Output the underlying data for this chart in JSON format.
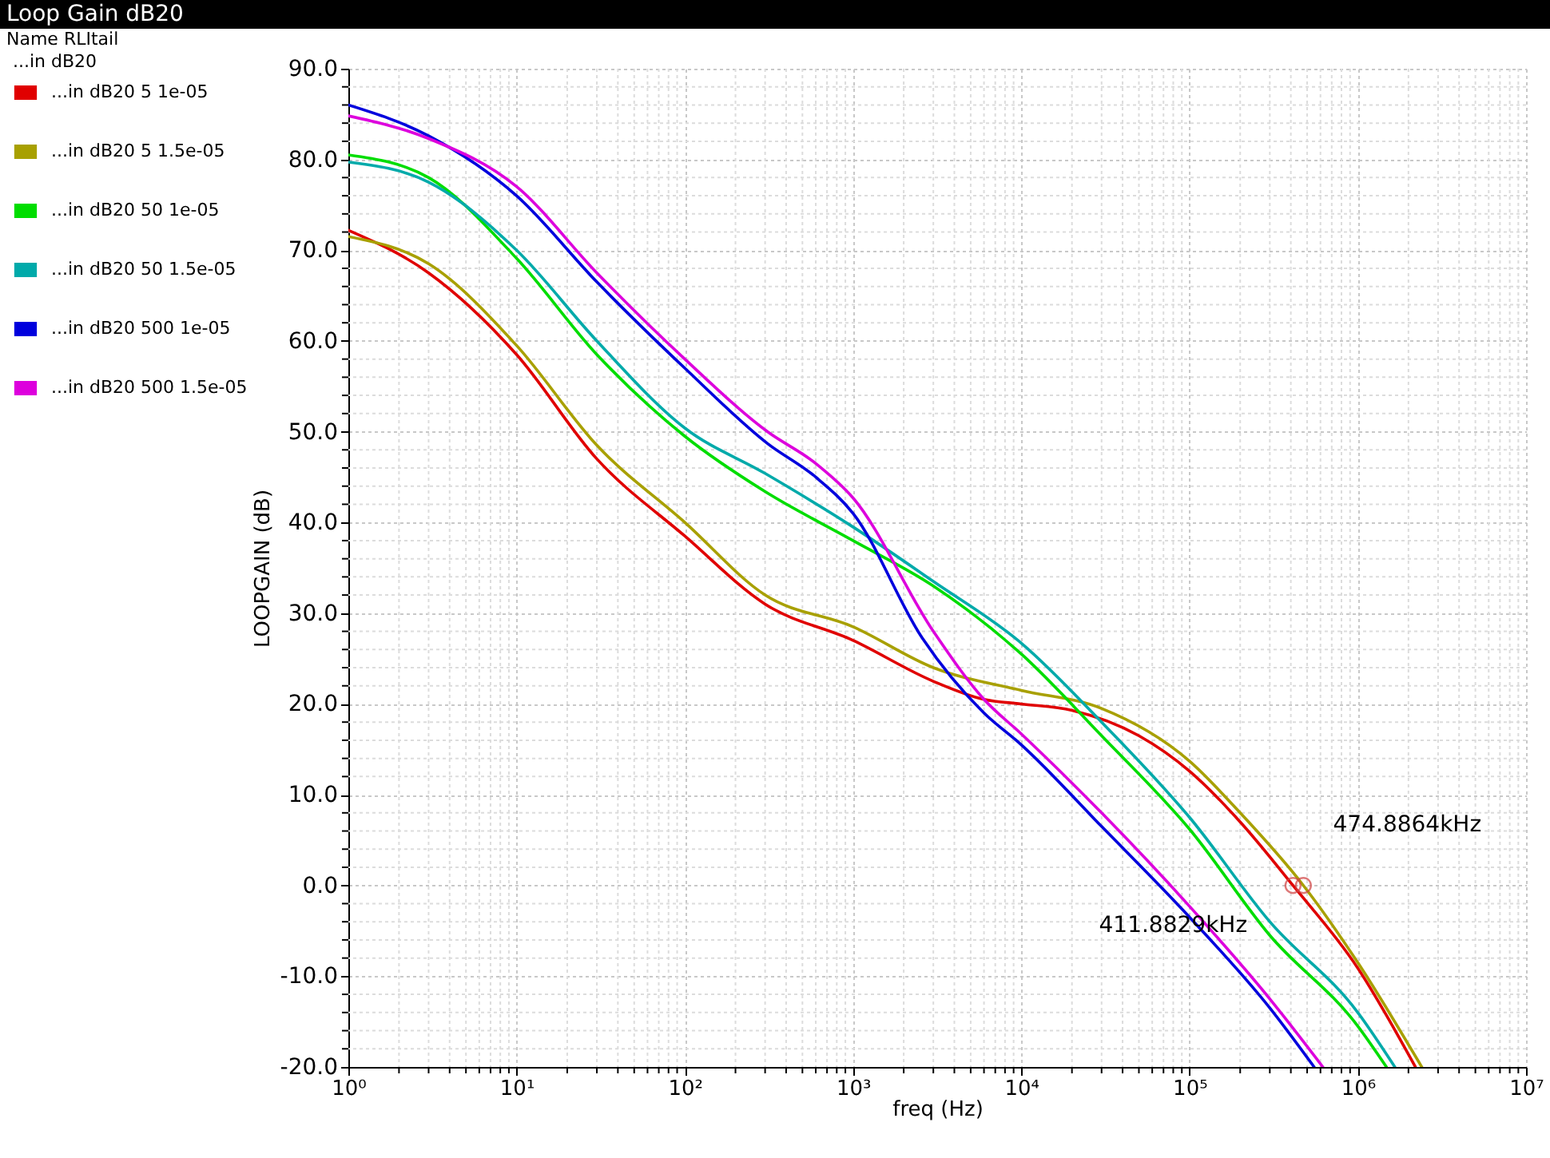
{
  "chart_data": {
    "type": "line",
    "title": "Loop Gain dB20",
    "xlabel": "freq (Hz)",
    "ylabel": "LOOPGAIN (dB)",
    "legend_title": "Name RLItail",
    "legend": "top left",
    "grid": true,
    "log": "x",
    "line_style": "solid",
    "xlim": [
      1,
      10000000
    ],
    "ylim": [
      -20,
      90
    ],
    "xticks": [
      {
        "value": 1,
        "label": "10⁰"
      },
      {
        "value": 10,
        "label": "10¹"
      },
      {
        "value": 100,
        "label": "10²"
      },
      {
        "value": 1000,
        "label": "10³"
      },
      {
        "value": 10000,
        "label": "10⁴"
      },
      {
        "value": 100000,
        "label": "10⁵"
      },
      {
        "value": 1000000,
        "label": "10⁶"
      },
      {
        "value": 10000000,
        "label": "10⁷"
      },
      {
        "value": 2,
        "label": null
      },
      {
        "value": 3,
        "label": null
      },
      {
        "value": 4,
        "label": null
      },
      {
        "value": 5,
        "label": null
      },
      {
        "value": 6,
        "label": null
      },
      {
        "value": 7,
        "label": null
      },
      {
        "value": 8,
        "label": null
      },
      {
        "value": 9,
        "label": null
      },
      {
        "value": 20,
        "label": null
      },
      {
        "value": 30,
        "label": null
      },
      {
        "value": 40,
        "label": null
      },
      {
        "value": 50,
        "label": null
      },
      {
        "value": 60,
        "label": null
      },
      {
        "value": 70,
        "label": null
      },
      {
        "value": 80,
        "label": null
      },
      {
        "value": 90,
        "label": null
      },
      {
        "value": 200,
        "label": null
      },
      {
        "value": 300,
        "label": null
      },
      {
        "value": 400,
        "label": null
      },
      {
        "value": 500,
        "label": null
      },
      {
        "value": 600,
        "label": null
      },
      {
        "value": 700,
        "label": null
      },
      {
        "value": 800,
        "label": null
      },
      {
        "value": 900,
        "label": null
      },
      {
        "value": 2000,
        "label": null
      },
      {
        "value": 3000,
        "label": null
      },
      {
        "value": 4000,
        "label": null
      },
      {
        "value": 5000,
        "label": null
      },
      {
        "value": 6000,
        "label": null
      },
      {
        "value": 7000,
        "label": null
      },
      {
        "value": 8000,
        "label": null
      },
      {
        "value": 9000,
        "label": null
      },
      {
        "value": 20000,
        "label": null
      },
      {
        "value": 30000,
        "label": null
      },
      {
        "value": 40000,
        "label": null
      },
      {
        "value": 50000,
        "label": null
      },
      {
        "value": 60000,
        "label": null
      },
      {
        "value": 70000,
        "label": null
      },
      {
        "value": 80000,
        "label": null
      },
      {
        "value": 90000,
        "label": null
      },
      {
        "value": 200000,
        "label": null
      },
      {
        "value": 300000,
        "label": null
      },
      {
        "value": 400000,
        "label": null
      },
      {
        "value": 500000,
        "label": null
      },
      {
        "value": 600000,
        "label": null
      },
      {
        "value": 700000,
        "label": null
      },
      {
        "value": 800000,
        "label": null
      },
      {
        "value": 900000,
        "label": null
      },
      {
        "value": 2000000,
        "label": null
      },
      {
        "value": 3000000,
        "label": null
      },
      {
        "value": 4000000,
        "label": null
      },
      {
        "value": 5000000,
        "label": null
      },
      {
        "value": 6000000,
        "label": null
      },
      {
        "value": 7000000,
        "label": null
      },
      {
        "value": 8000000,
        "label": null
      },
      {
        "value": 9000000,
        "label": null
      }
    ],
    "yticks": [
      {
        "value": -20,
        "label": "-20.0"
      },
      {
        "value": -10,
        "label": "-10.0"
      },
      {
        "value": 0,
        "label": "0.0"
      },
      {
        "value": 10,
        "label": "10.0"
      },
      {
        "value": 20,
        "label": "20.0"
      },
      {
        "value": 30,
        "label": "30.0"
      },
      {
        "value": 40,
        "label": "40.0"
      },
      {
        "value": 50,
        "label": "50.0"
      },
      {
        "value": 60,
        "label": "60.0"
      },
      {
        "value": 70,
        "label": "70.0"
      },
      {
        "value": 80,
        "label": "80.0"
      },
      {
        "value": 90,
        "label": "90.0"
      },
      {
        "value": -18,
        "label": null
      },
      {
        "value": -16,
        "label": null
      },
      {
        "value": -14,
        "label": null
      },
      {
        "value": -12,
        "label": null
      },
      {
        "value": -8,
        "label": null
      },
      {
        "value": -6,
        "label": null
      },
      {
        "value": -4,
        "label": null
      },
      {
        "value": -2,
        "label": null
      },
      {
        "value": 2,
        "label": null
      },
      {
        "value": 4,
        "label": null
      },
      {
        "value": 6,
        "label": null
      },
      {
        "value": 8,
        "label": null
      },
      {
        "value": 12,
        "label": null
      },
      {
        "value": 14,
        "label": null
      },
      {
        "value": 16,
        "label": null
      },
      {
        "value": 18,
        "label": null
      },
      {
        "value": 22,
        "label": null
      },
      {
        "value": 24,
        "label": null
      },
      {
        "value": 26,
        "label": null
      },
      {
        "value": 28,
        "label": null
      },
      {
        "value": 32,
        "label": null
      },
      {
        "value": 34,
        "label": null
      },
      {
        "value": 36,
        "label": null
      },
      {
        "value": 38,
        "label": null
      },
      {
        "value": 42,
        "label": null
      },
      {
        "value": 44,
        "label": null
      },
      {
        "value": 46,
        "label": null
      },
      {
        "value": 48,
        "label": null
      },
      {
        "value": 52,
        "label": null
      },
      {
        "value": 54,
        "label": null
      },
      {
        "value": 56,
        "label": null
      },
      {
        "value": 58,
        "label": null
      },
      {
        "value": 62,
        "label": null
      },
      {
        "value": 64,
        "label": null
      },
      {
        "value": 66,
        "label": null
      },
      {
        "value": 68,
        "label": null
      },
      {
        "value": 72,
        "label": null
      },
      {
        "value": 74,
        "label": null
      },
      {
        "value": 76,
        "label": null
      },
      {
        "value": 78,
        "label": null
      },
      {
        "value": 82,
        "label": null
      },
      {
        "value": 84,
        "label": null
      },
      {
        "value": 86,
        "label": null
      },
      {
        "value": 88,
        "label": null
      }
    ],
    "annotations": [
      "...in dB20",
      {
        "text": "474.8864kHz",
        "x": 474886.4,
        "y": 0
      },
      {
        "text": "411.8829kHz",
        "x": 411882.9,
        "y": 0
      }
    ],
    "series": [
      {
        "name": "...in dB20 5 1e-05",
        "color": "#e00000",
        "x": [
          1,
          3,
          10,
          30,
          100,
          300,
          1000,
          3000,
          6000,
          10000,
          20000,
          50000,
          100000,
          200000,
          411882.9,
          1000000,
          2200000
        ],
        "values": [
          72.2,
          67.5,
          58.5,
          47,
          38.5,
          31,
          27,
          22.5,
          20.5,
          20,
          19.3,
          16.5,
          12.6,
          7,
          0,
          -9.1,
          -20
        ]
      },
      {
        "name": "...in dB20 5 1.5e-05",
        "color": "#a8a000",
        "x": [
          1,
          3,
          10,
          30,
          100,
          300,
          1000,
          3000,
          10000,
          30000,
          100000,
          200000,
          474886.4,
          1000000,
          2400000
        ],
        "values": [
          71.5,
          68.5,
          59.5,
          48.5,
          40,
          32,
          28.5,
          24,
          21.5,
          19.5,
          13.7,
          8,
          0,
          -8.5,
          -20
        ]
      },
      {
        "name": "...in dB20 50 1e-05",
        "color": "#00dd00",
        "x": [
          1,
          3,
          10,
          30,
          100,
          300,
          1000,
          3000,
          10000,
          30000,
          100000,
          300000,
          1000000,
          1480000
        ],
        "values": [
          80.5,
          78,
          69.1,
          58.5,
          49.5,
          43.4,
          38,
          33,
          25.5,
          16.5,
          6.2,
          -5.5,
          -15.5,
          -20
        ]
      },
      {
        "name": "...in dB20 50 1.5e-05",
        "color": "#00aaaa",
        "x": [
          1,
          3,
          10,
          30,
          100,
          300,
          1000,
          3000,
          10000,
          30000,
          100000,
          300000,
          1000000,
          1660000
        ],
        "values": [
          79.7,
          77.5,
          70,
          60,
          50.4,
          45.4,
          39.5,
          33.5,
          26.7,
          18,
          7.5,
          -4,
          -14,
          -20
        ]
      },
      {
        "name": "...in dB20 500 1e-05",
        "color": "#0000dd",
        "x": [
          1,
          3,
          10,
          30,
          100,
          310,
          600,
          1000,
          2570,
          6000,
          10000,
          30000,
          100000,
          300000,
          550000
        ],
        "values": [
          86,
          82.6,
          76,
          66.5,
          57,
          48.7,
          45,
          41,
          27.3,
          19,
          15.5,
          6.5,
          -3.5,
          -13.5,
          -20
        ]
      },
      {
        "name": "...in dB20 500 1.5e-05",
        "color": "#dd00dd",
        "x": [
          1,
          3,
          10,
          30,
          100,
          310,
          600,
          1000,
          3000,
          6000,
          10000,
          30000,
          100000,
          300000,
          620000
        ],
        "values": [
          84.8,
          82.3,
          77,
          67.5,
          58,
          50,
          46.5,
          42.7,
          28,
          20.5,
          16.7,
          8,
          -2.3,
          -12.5,
          -20
        ]
      }
    ]
  }
}
